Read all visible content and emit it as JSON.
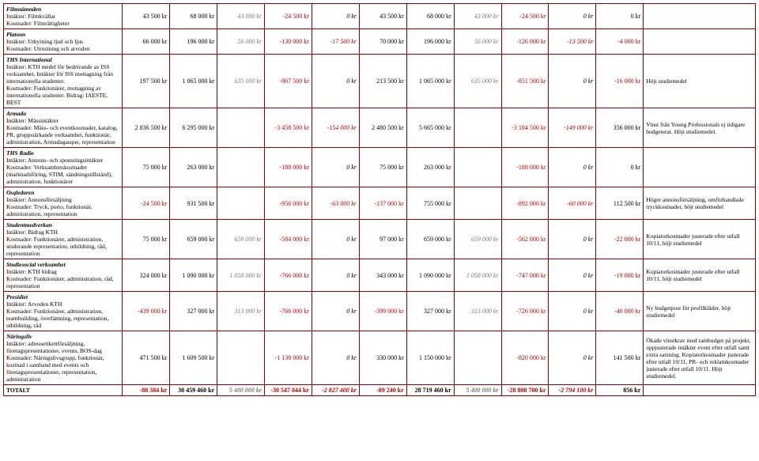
{
  "columns": {
    "count": 13
  },
  "rows": [
    {
      "title": "Filmnämnden",
      "intakter": "Intäkter: Filmkvällar",
      "kostnader": "Kostnader: Filmrättigheter",
      "vals": [
        "43 500 kr",
        "68 000 kr",
        "43 000 kr",
        "-24 500 kr",
        "0 kr",
        "43 500 kr",
        "68 000 kr",
        "43 000 kr",
        "-24 500 kr",
        "0 kr",
        "0 kr"
      ],
      "styles": [
        "",
        "",
        "graynum",
        "neg",
        "ital",
        "",
        "",
        "graynum",
        "neg",
        "ital",
        ""
      ],
      "comment": ""
    },
    {
      "title": "Platoon",
      "intakter": "Intäkter: Uthyrning ljud och ljus",
      "kostnader": "Kostnader: Utrustning och arvoden",
      "vals": [
        "66 000 kr",
        "196 000 kr",
        "56 000 kr",
        "-130 000 kr",
        "-17 500 kr",
        "70 000 kr",
        "196 000 kr",
        "56 000 kr",
        "-126 000 kr",
        "-13 500 kr",
        "-4 000 kr"
      ],
      "styles": [
        "",
        "",
        "graynum",
        "neg",
        "neg ital",
        "",
        "",
        "graynum",
        "neg",
        "neg ital",
        "neg"
      ],
      "comment": ""
    },
    {
      "title": "THS International",
      "intakter": "Intäkter: KTH medel för bedrivande av ISS verksamhet. Intäkter för ISS mottagning från internationella studenter.",
      "kostnader": "Kostnader: Funktionärer, mottagning av internationella studenter. Bidrag: IAESTE, BEST",
      "vals": [
        "197 500 kr",
        "1 065 000 kr",
        "635 000 kr",
        "-867 500 kr",
        "0 kr",
        "213 500 kr",
        "1 065 000 kr",
        "635 000 kr",
        "-851 500 kr",
        "0 kr",
        "-16 000 kr"
      ],
      "styles": [
        "",
        "",
        "graynum",
        "neg",
        "ital",
        "",
        "",
        "graynum",
        "neg",
        "ital",
        "neg"
      ],
      "comment": "Höjt studiemedel"
    },
    {
      "title": "Armada",
      "intakter": "Intäkter: Mässintäkter",
      "kostnader": "Kostnader: Mäss- och eventkostnader, katalog, PR, gruppstärkande verksamhet, funktionär, administration, Armadagasque, representation",
      "vals": [
        "2 836 500 kr",
        "6 295 000 kr",
        "",
        "-3 458 500 kr",
        "-154 000 kr",
        "2 480 500 kr",
        "5 665 000 kr",
        "",
        "-3 184 500 kr",
        "-149 000 kr",
        "356 000 kr"
      ],
      "styles": [
        "",
        "",
        "",
        "neg",
        "neg ital",
        "",
        "",
        "",
        "neg",
        "neg ital",
        ""
      ],
      "comment": "Vinst från Young Professionals ej tidigare budgeterat. Höjt studiemedel."
    },
    {
      "title": "THS Radio",
      "intakter": "Intäkter: Annons- och sponsringsintäkter",
      "kostnader": "Kostnader: Verksamhetskostnader (marknadsföring, STIM, sändningstillstånd), administration, funktionärer",
      "vals": [
        "75 000 kr",
        "263 000 kr",
        "",
        "-188 000 kr",
        "0 kr",
        "75 000 kr",
        "263 000 kr",
        "",
        "-188 000 kr",
        "0 kr",
        "0 kr"
      ],
      "styles": [
        "",
        "",
        "",
        "neg",
        "ital",
        "",
        "",
        "",
        "neg",
        "ital",
        ""
      ],
      "comment": ""
    },
    {
      "title": "Osqledaren",
      "intakter": "Intäkter: Annonsförsäljning",
      "kostnader": "Kostnader: Tryck, porto, funktionär, administration, representation",
      "vals": [
        "-24 500 kr",
        "931 500 kr",
        "",
        "-956 000 kr",
        "-63 000 kr",
        "-137 000 kr",
        "755 000 kr",
        "",
        "-892 000 kr",
        "-60 000 kr",
        "112 500 kr"
      ],
      "styles": [
        "neg",
        "",
        "",
        "neg",
        "neg ital",
        "neg",
        "",
        "",
        "neg",
        "neg ital",
        ""
      ],
      "comment": "Högre annonsförsäljning, omförhandlade tryckkostnader, höjt studiemedel"
    },
    {
      "title": "Studentmedverkan",
      "intakter": "Intäkter: Bidrag KTH",
      "kostnader": "Kostnader: Funktionärer, administration, studerande representation, utbildning, råd, representation",
      "vals": [
        "75 000 kr",
        "659 000 kr",
        "659 000 kr",
        "-584 000 kr",
        "0 kr",
        "97 000 kr",
        "659 000 kr",
        "659 000 kr",
        "-562 000 kr",
        "0 kr",
        "-22 000 kr"
      ],
      "styles": [
        "",
        "",
        "graynum",
        "neg",
        "ital",
        "",
        "",
        "graynum",
        "neg",
        "ital",
        "neg"
      ],
      "comment": "Kopiatorkostnader justerade efter utfall 10/11, höjt studiemedel"
    },
    {
      "title": "Studiesocial verksamhet",
      "intakter": "Intäkter: KTH bidrag",
      "kostnader": "Kostnader: Funktionärer, administration, råd, representation",
      "vals": [
        "324 000 kr",
        "1 090 000 kr",
        "1 058 000 kr",
        "-766 000 kr",
        "0 kr",
        "343 000 kr",
        "1 090 000 kr",
        "1 058 000 kr",
        "-747 000 kr",
        "0 kr",
        "-19 000 kr"
      ],
      "styles": [
        "",
        "",
        "graynum",
        "neg",
        "ital",
        "",
        "",
        "graynum",
        "neg",
        "ital",
        "neg"
      ],
      "comment": "Kopiatorkostnader justerade efter utfall 10/11, höjt studiemedel"
    },
    {
      "title": "Presidiet",
      "intakter": "Intäkter: Arvoden KTH",
      "kostnader": "Kostnader: Funktionärer, administration, teambuilding, överlämning, representation, utbildning, råd",
      "vals": [
        "-439 000 kr",
        "327 000 kr",
        "313 000 kr",
        "-766 000 kr",
        "0 kr",
        "-399 000 kr",
        "327 000 kr",
        "313 000 kr",
        "-726 000 kr",
        "0 kr",
        "-40 000 kr"
      ],
      "styles": [
        "neg",
        "",
        "graynum",
        "neg",
        "ital",
        "neg",
        "",
        "graynum",
        "neg",
        "ital",
        "neg"
      ],
      "comment": "Ny budgetpost för profilkläder, höjt studiemedel"
    },
    {
      "title": "Näringsliv",
      "intakter": "Intäkter: adressetikettförsäljning, företagspresentationer, events, BOS-dag",
      "kostnader": "Kostnader: Näringslivsgrupp, funktionär, kostnad i samband med events och företagspresentationer, representation, administration",
      "vals": [
        "471 500 kr",
        "1 609 500 kr",
        "",
        "-1 138 000 kr",
        "0 kr",
        "330 000 kr",
        "1 150 000 kr",
        "",
        "-820 000 kr",
        "0 kr",
        "141 500 kr"
      ],
      "styles": [
        "",
        "",
        "",
        "neg",
        "ital",
        "",
        "",
        "",
        "neg",
        "ital",
        ""
      ],
      "comment": "Ökade vinstkrav med rambudget på projekt, uppjusterade intäkter event efter utfall samt extra satsning. Kopiatorkostnader justerade efter utfall 10/11, PR- och reklamkostnader justerade efter utfall 10/11. Höjt studiemedel."
    }
  ],
  "total": {
    "label": "TOTALT",
    "vals": [
      "-88 384 kr",
      "30 459 460 kr",
      "5 400 000 kr",
      "-30 547 844 kr",
      "-2 827 400 kr",
      "-89 240 kr",
      "28 719 460 kr",
      "5 400 000 kr",
      "-28 808 700 kr",
      "-2 794 100 kr",
      "856 kr"
    ],
    "styles": [
      "neg",
      "",
      "graynum",
      "neg",
      "neg ital",
      "neg",
      "",
      "graynum",
      "neg",
      "neg ital",
      ""
    ]
  }
}
